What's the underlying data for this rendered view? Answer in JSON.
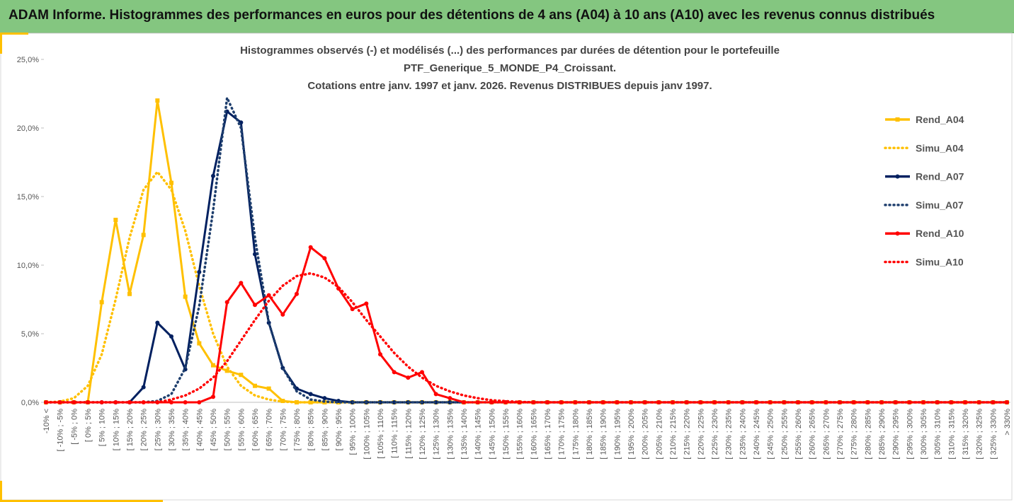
{
  "header": {
    "title": "ADAM Informe. Histogrammes des performances en euros pour des détentions de 4 ans (A04) à 10 ans (A10) avec les revenus connus distribués"
  },
  "chart_data": {
    "type": "line",
    "title": [
      "Histogrammes observés (-) et modélisés (...) des performances par durées de détention pour le portefeuille",
      "PTF_Generique_5_MONDE_P4_Croissant.",
      "Cotations entre janv. 1997 et janv. 2026. Revenus DISTRIBUES depuis janv 1997."
    ],
    "categories": [
      "-10% <",
      "[ -10% ; -5%",
      "[ -5% ; 0%",
      "[ 0% ; 5%",
      "[ 5% ; 10%",
      "[ 10% ; 15%",
      "[ 15% ; 20%",
      "[ 20% ; 25%",
      "[ 25% ; 30%",
      "[ 30% ; 35%",
      "[ 35% ; 40%",
      "[ 40% ; 45%",
      "[ 45% ; 50%",
      "[ 50% ; 55%",
      "[ 55% ; 60%",
      "[ 60% ; 65%",
      "[ 65% ; 70%",
      "[ 70% ; 75%",
      "[ 75% ; 80%",
      "[ 80% ; 85%",
      "[ 85% ; 90%",
      "[ 90% ; 95%",
      "[ 95% ; 100%",
      "[ 100% ; 105%",
      "[ 105% ; 110%",
      "[ 110% ; 115%",
      "[ 115% ; 120%",
      "[ 120% ; 125%",
      "[ 125% ; 130%",
      "[ 130% ; 135%",
      "[ 135% ; 140%",
      "[ 140% ; 145%",
      "[ 145% ; 150%",
      "[ 150% ; 155%",
      "[ 155% ; 160%",
      "[ 160% ; 165%",
      "[ 165% ; 170%",
      "[ 170% ; 175%",
      "[ 175% ; 180%",
      "[ 180% ; 185%",
      "[ 185% ; 190%",
      "[ 190% ; 195%",
      "[ 195% ; 200%",
      "[ 200% ; 205%",
      "[ 205% ; 210%",
      "[ 210% ; 215%",
      "[ 215% ; 220%",
      "[ 220% ; 225%",
      "[ 225% ; 230%",
      "[ 230% ; 235%",
      "[ 235% ; 240%",
      "[ 240% ; 245%",
      "[ 245% ; 250%",
      "[ 250% ; 255%",
      "[ 255% ; 260%",
      "[ 260% ; 265%",
      "[ 265% ; 270%",
      "[ 270% ; 275%",
      "[ 275% ; 280%",
      "[ 280% ; 285%",
      "[ 285% ; 290%",
      "[ 290% ; 295%",
      "[ 295% ; 300%",
      "[ 300% ; 305%",
      "[ 305% ; 310%",
      "[ 310% ; 315%",
      "[ 315% ; 320%",
      "[ 320% ; 325%",
      "[ 325% ; 330%",
      "> 330%"
    ],
    "series": [
      {
        "name": "Rend_A04",
        "color": "#ffc000",
        "dashed": false,
        "marker": "square",
        "values": [
          0,
          0,
          0,
          0,
          7.3,
          13.3,
          7.9,
          12.2,
          22.0,
          16.0,
          7.7,
          4.3,
          2.7,
          2.3,
          2.0,
          1.2,
          1.0,
          0.1,
          0,
          0,
          0,
          0,
          0,
          0,
          0,
          0,
          0,
          0,
          0,
          0,
          0,
          0,
          0,
          0,
          0,
          0,
          0,
          0,
          0,
          0,
          0,
          0,
          0,
          0,
          0,
          0,
          0,
          0,
          0,
          0,
          0,
          0,
          0,
          0,
          0,
          0,
          0,
          0,
          0,
          0,
          0,
          0,
          0,
          0,
          0,
          0,
          0,
          0,
          0,
          0
        ]
      },
      {
        "name": "Simu_A04",
        "color": "#ffc000",
        "dashed": true,
        "values": [
          0,
          0.05,
          0.3,
          1.2,
          3.5,
          7.5,
          12,
          15.5,
          16.8,
          15.5,
          12.5,
          8.5,
          5,
          2.6,
          1.2,
          0.5,
          0.2,
          0.05,
          0,
          0,
          0,
          0,
          0,
          0,
          0,
          0,
          0,
          0,
          0,
          0,
          0,
          0,
          0,
          0,
          0,
          0,
          0,
          0,
          0,
          0,
          0,
          0,
          0,
          0,
          0,
          0,
          0,
          0,
          0,
          0,
          0,
          0,
          0,
          0,
          0,
          0,
          0,
          0,
          0,
          0,
          0,
          0,
          0,
          0,
          0,
          0,
          0,
          0,
          0,
          0
        ]
      },
      {
        "name": "Rend_A07",
        "color": "#002060",
        "dashed": false,
        "marker": "circle",
        "values": [
          0,
          0,
          0,
          0,
          0,
          0,
          0,
          1.1,
          5.8,
          4.8,
          2.4,
          9.5,
          16.5,
          21.2,
          20.4,
          10.8,
          5.8,
          2.5,
          1.0,
          0.6,
          0.3,
          0.1,
          0,
          0,
          0,
          0,
          0,
          0,
          0,
          0,
          0,
          0,
          0,
          0,
          0,
          0,
          0,
          0,
          0,
          0,
          0,
          0,
          0,
          0,
          0,
          0,
          0,
          0,
          0,
          0,
          0,
          0,
          0,
          0,
          0,
          0,
          0,
          0,
          0,
          0,
          0,
          0,
          0,
          0,
          0,
          0,
          0,
          0,
          0,
          0
        ]
      },
      {
        "name": "Simu_A07",
        "color": "#1f3f6e",
        "dashed": true,
        "values": [
          0,
          0,
          0,
          0,
          0,
          0,
          0,
          0,
          0.1,
          0.6,
          2.5,
          7,
          14,
          22.2,
          20,
          12,
          5.8,
          2.5,
          0.8,
          0.2,
          0.05,
          0,
          0,
          0,
          0,
          0,
          0,
          0,
          0,
          0,
          0,
          0,
          0,
          0,
          0,
          0,
          0,
          0,
          0,
          0,
          0,
          0,
          0,
          0,
          0,
          0,
          0,
          0,
          0,
          0,
          0,
          0,
          0,
          0,
          0,
          0,
          0,
          0,
          0,
          0,
          0,
          0,
          0,
          0,
          0,
          0,
          0,
          0,
          0,
          0
        ]
      },
      {
        "name": "Rend_A10",
        "color": "#ff0000",
        "dashed": false,
        "marker": "circle",
        "values": [
          0,
          0,
          0,
          0,
          0,
          0,
          0,
          0,
          0,
          0,
          0,
          0,
          0.4,
          7.3,
          8.7,
          7.1,
          7.8,
          6.4,
          7.9,
          11.3,
          10.5,
          8.3,
          6.8,
          7.2,
          3.5,
          2.2,
          1.8,
          2.2,
          0.6,
          0.3,
          0,
          0,
          0,
          0,
          0,
          0,
          0,
          0,
          0,
          0,
          0,
          0,
          0,
          0,
          0,
          0,
          0,
          0,
          0,
          0,
          0,
          0,
          0,
          0,
          0,
          0,
          0,
          0,
          0,
          0,
          0,
          0,
          0,
          0,
          0,
          0,
          0,
          0,
          0,
          0
        ]
      },
      {
        "name": "Simu_A10",
        "color": "#ff0000",
        "dashed": true,
        "values": [
          0,
          0,
          0,
          0,
          0,
          0,
          0,
          0,
          0,
          0.2,
          0.5,
          1.0,
          1.8,
          3.0,
          4.5,
          6.0,
          7.4,
          8.5,
          9.2,
          9.4,
          9.1,
          8.4,
          7.3,
          6.0,
          4.8,
          3.6,
          2.6,
          1.8,
          1.2,
          0.8,
          0.5,
          0.3,
          0.15,
          0.08,
          0.03,
          0,
          0,
          0,
          0,
          0,
          0,
          0,
          0,
          0,
          0,
          0,
          0,
          0,
          0,
          0,
          0,
          0,
          0,
          0,
          0,
          0,
          0,
          0,
          0,
          0,
          0,
          0,
          0,
          0,
          0,
          0,
          0,
          0,
          0,
          0
        ]
      }
    ],
    "ylim": [
      0,
      25
    ],
    "yticks": [
      {
        "value": 0,
        "label": "0,0%"
      },
      {
        "value": 5,
        "label": "5,0%"
      },
      {
        "value": 10,
        "label": "10,0%"
      },
      {
        "value": 15,
        "label": "15,0%"
      },
      {
        "value": 20,
        "label": "20,0%"
      },
      {
        "value": 25,
        "label": "25,0%"
      }
    ],
    "grid": false,
    "legend": "right"
  }
}
